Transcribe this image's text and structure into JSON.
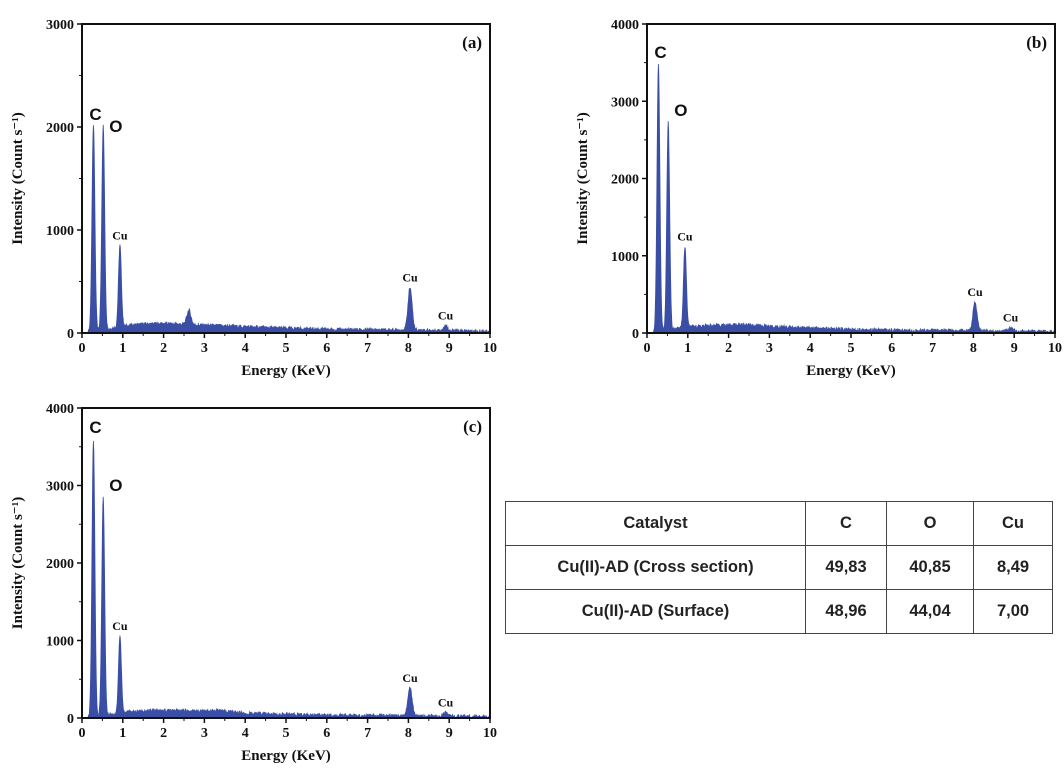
{
  "chart_data": [
    {
      "type": "line",
      "panel_label": "(a)",
      "xlabel": "Energy (KeV)",
      "ylabel": "Intensity (Count s⁻¹)",
      "xlim": [
        0,
        10
      ],
      "ylim": [
        0,
        3000
      ],
      "xticks": [
        "0",
        "1",
        "2",
        "3",
        "4",
        "5",
        "6",
        "7",
        "8",
        "9",
        "10"
      ],
      "yticks": [
        "0",
        "1000",
        "2000",
        "3000"
      ],
      "color": "#3a4ea6",
      "peaks": [
        {
          "label": "C",
          "x": 0.28,
          "y": 2030
        },
        {
          "label": "O",
          "x": 0.52,
          "y": 2010
        },
        {
          "label": "Cu",
          "x": 0.93,
          "y": 850
        },
        {
          "label": "",
          "x": 2.62,
          "y": 220
        },
        {
          "label": "Cu",
          "x": 8.04,
          "y": 440
        },
        {
          "label": "Cu",
          "x": 8.91,
          "y": 75
        }
      ],
      "background": [
        [
          0,
          0
        ],
        [
          0.2,
          10
        ],
        [
          1.1,
          70
        ],
        [
          1.5,
          85
        ],
        [
          2,
          90
        ],
        [
          3,
          75
        ],
        [
          4,
          60
        ],
        [
          5,
          45
        ],
        [
          6,
          35
        ],
        [
          7,
          30
        ],
        [
          8,
          28
        ],
        [
          9,
          22
        ],
        [
          10,
          15
        ]
      ]
    },
    {
      "type": "line",
      "panel_label": "(b)",
      "xlabel": "Energy (KeV)",
      "ylabel": "Intensity (Count s⁻¹)",
      "xlim": [
        0,
        10
      ],
      "ylim": [
        0,
        4000
      ],
      "xticks": [
        "0",
        "1",
        "2",
        "3",
        "4",
        "5",
        "6",
        "7",
        "8",
        "9",
        "10"
      ],
      "yticks": [
        "0",
        "1000",
        "2000",
        "3000",
        "4000"
      ],
      "color": "#3a4ea6",
      "peaks": [
        {
          "label": "C",
          "x": 0.28,
          "y": 3480
        },
        {
          "label": "O",
          "x": 0.52,
          "y": 2730
        },
        {
          "label": "Cu",
          "x": 0.93,
          "y": 1120
        },
        {
          "label": "Cu",
          "x": 8.04,
          "y": 400
        },
        {
          "label": "Cu",
          "x": 8.91,
          "y": 70
        }
      ],
      "background": [
        [
          0,
          0
        ],
        [
          0.2,
          10
        ],
        [
          1.1,
          80
        ],
        [
          1.5,
          95
        ],
        [
          2,
          100
        ],
        [
          2.4,
          110
        ],
        [
          3,
          85
        ],
        [
          4,
          60
        ],
        [
          5,
          45
        ],
        [
          6,
          35
        ],
        [
          7,
          30
        ],
        [
          8,
          28
        ],
        [
          9,
          22
        ],
        [
          10,
          15
        ]
      ]
    },
    {
      "type": "line",
      "panel_label": "(c)",
      "xlabel": "Energy (KeV)",
      "ylabel": "Intensity (Count s⁻¹)",
      "xlim": [
        0,
        10
      ],
      "ylim": [
        0,
        4000
      ],
      "xticks": [
        "0",
        "1",
        "2",
        "3",
        "4",
        "5",
        "6",
        "7",
        "8",
        "9",
        "10"
      ],
      "yticks": [
        "0",
        "1000",
        "2000",
        "3000",
        "4000"
      ],
      "color": "#3a4ea6",
      "peaks": [
        {
          "label": "C",
          "x": 0.28,
          "y": 3600
        },
        {
          "label": "O",
          "x": 0.52,
          "y": 2850
        },
        {
          "label": "Cu",
          "x": 0.93,
          "y": 1060
        },
        {
          "label": "Cu",
          "x": 8.04,
          "y": 390
        },
        {
          "label": "Cu",
          "x": 8.91,
          "y": 70
        }
      ],
      "background": [
        [
          0,
          0
        ],
        [
          0.2,
          10
        ],
        [
          1.1,
          75
        ],
        [
          1.5,
          90
        ],
        [
          2,
          95
        ],
        [
          3,
          90
        ],
        [
          3.3,
          100
        ],
        [
          4,
          60
        ],
        [
          5,
          45
        ],
        [
          6,
          35
        ],
        [
          7,
          30
        ],
        [
          8,
          28
        ],
        [
          9,
          22
        ],
        [
          10,
          15
        ]
      ]
    },
    {
      "type": "table",
      "columns": [
        "Catalyst",
        "C",
        "O",
        "Cu"
      ],
      "rows": [
        [
          "Cu(II)-AD (Cross section)",
          "49,83",
          "40,85",
          "8,49"
        ],
        [
          "Cu(II)-AD  (Surface)",
          "48,96",
          "44,04",
          "7,00"
        ]
      ]
    }
  ]
}
